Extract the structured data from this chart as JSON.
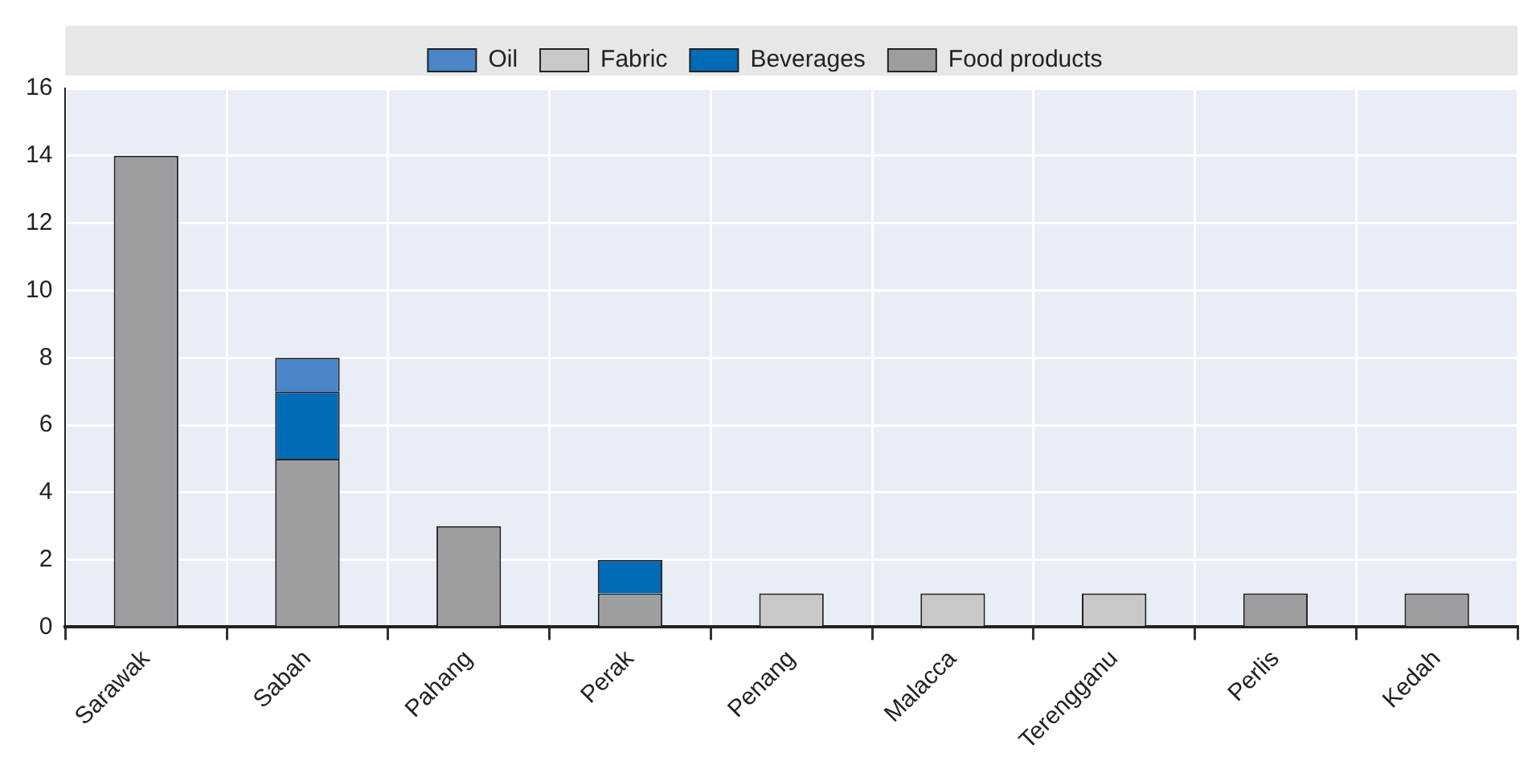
{
  "chart_data": {
    "type": "bar",
    "stacked": true,
    "categories": [
      "Sarawak",
      "Sabah",
      "Pahang",
      "Perak",
      "Penang",
      "Malacca",
      "Terengganu",
      "Perlis",
      "Kedah"
    ],
    "series": [
      {
        "name": "Food products",
        "color": "#9d9ea2",
        "values": [
          14,
          5,
          3,
          1,
          null,
          null,
          null,
          1,
          1
        ]
      },
      {
        "name": "Beverages",
        "color": "#006bb6",
        "values": [
          null,
          2,
          null,
          1,
          null,
          null,
          null,
          null,
          null
        ]
      },
      {
        "name": "Fabric",
        "color": "#c8c8c8",
        "values": [
          null,
          null,
          null,
          null,
          1,
          1,
          1,
          null,
          null
        ]
      },
      {
        "name": "Oil",
        "color": "#4a86c8",
        "values": [
          null,
          1,
          null,
          null,
          null,
          null,
          null,
          null,
          null
        ]
      }
    ],
    "ylim": [
      0,
      16
    ],
    "yticks": [
      0,
      2,
      4,
      6,
      8,
      10,
      12,
      14,
      16
    ],
    "grid": true,
    "legend": "top"
  }
}
